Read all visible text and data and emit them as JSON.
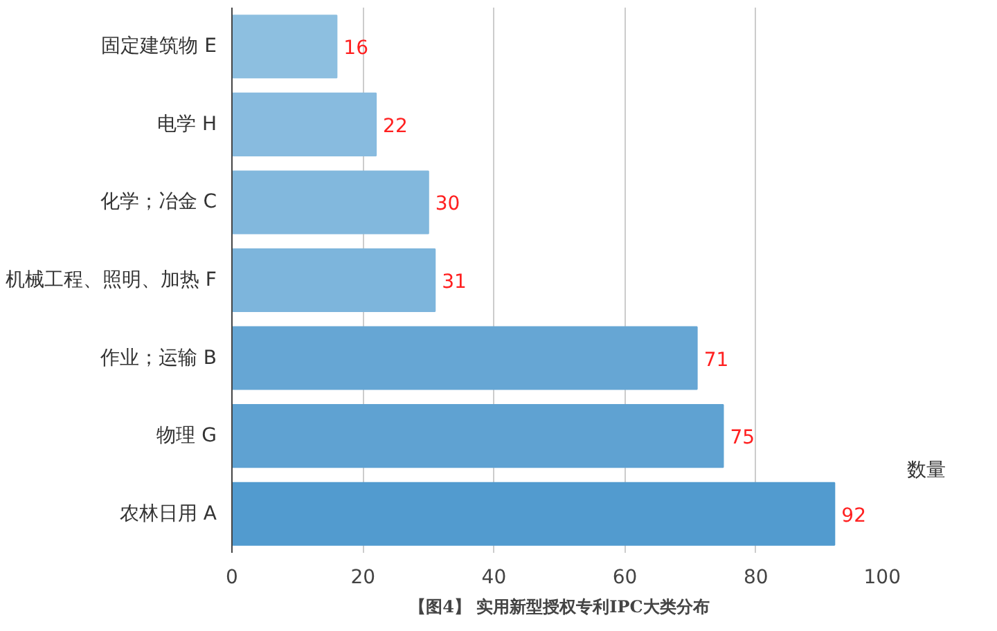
{
  "chart_data": {
    "type": "bar",
    "orientation": "horizontal",
    "title": "【图4】 实用新型授权专利IPC大类分布",
    "xlabel": "数量",
    "categories": [
      "固定建筑物 E",
      "电学 H",
      "化学；冶金 C",
      "机械工程、照明、加热 F",
      "作业；运输 B",
      "物理 G",
      "农林日用 A"
    ],
    "values": [
      16,
      22,
      30,
      31,
      71,
      75,
      92
    ],
    "colors": [
      "#8dbfe0",
      "#88bbdf",
      "#82b8dd",
      "#7db5dc",
      "#66a6d4",
      "#5fa2d2",
      "#529bcf"
    ],
    "xlim": [
      0,
      100
    ],
    "xticks": [
      0,
      20,
      40,
      60,
      80,
      100
    ],
    "grid": "x",
    "data_labels": true
  }
}
